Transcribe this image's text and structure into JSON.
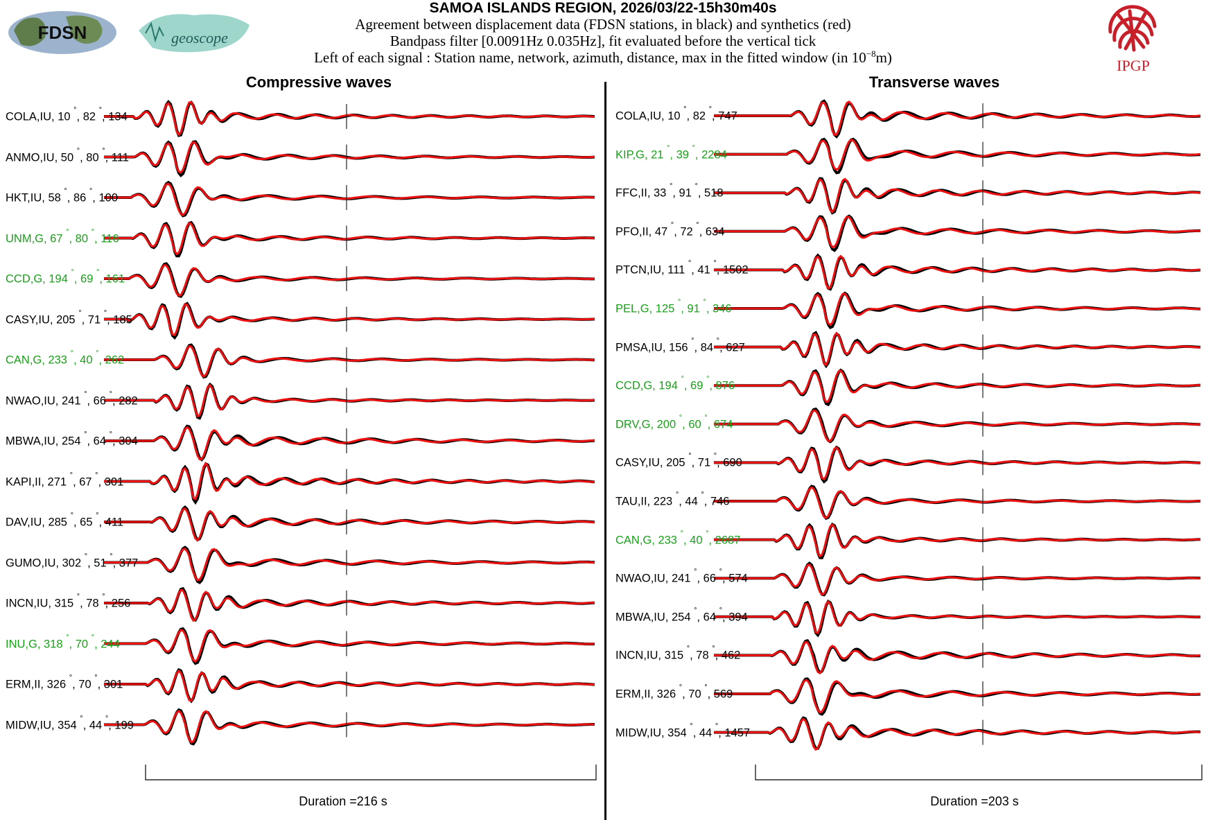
{
  "title": "SAMOA ISLANDS REGION, 2026/03/22-15h30m40s",
  "subtitle_1": "Agreement between displacement data (FDSN stations, in black) and synthetics (red)",
  "subtitle_2": "Bandpass filter [0.0091Hz 0.035Hz], fit evaluated before the vertical tick",
  "subtitle_3_prefix": "Left of each signal : Station name, network, azimuth, distance, max in the fitted window (in 10",
  "subtitle_3_exp": "−8",
  "subtitle_3_suffix": "m)",
  "logos": {
    "fdsn": "FDSN",
    "geoscope": "geoscope",
    "ipgp": "IPGP"
  },
  "colors": {
    "data": "#000000",
    "synthetic": "#ee1111",
    "green_label": "#1aa01a"
  },
  "degree_symbol": "°",
  "chart_data": [
    {
      "type": "line",
      "title": "Compressive waves",
      "duration_label": "Duration =216 s",
      "duration_s": 216,
      "series_legend": {
        "data": "black",
        "synthetics": "red"
      },
      "stations": [
        {
          "name": "COLA,IU",
          "azimuth": 10,
          "distance": 82,
          "max": 134,
          "green": false
        },
        {
          "name": "ANMO,IU",
          "azimuth": 50,
          "distance": 80,
          "max": 111,
          "green": false
        },
        {
          "name": "HKT,IU",
          "azimuth": 58,
          "distance": 86,
          "max": 100,
          "green": false
        },
        {
          "name": "UNM,G",
          "azimuth": 67,
          "distance": 80,
          "max": 116,
          "green": true
        },
        {
          "name": "CCD,G",
          "azimuth": 194,
          "distance": 69,
          "max": 161,
          "green": true
        },
        {
          "name": "CASY,IU",
          "azimuth": 205,
          "distance": 71,
          "max": 185,
          "green": false
        },
        {
          "name": "CAN,G",
          "azimuth": 233,
          "distance": 40,
          "max": 262,
          "green": true
        },
        {
          "name": "NWAO,IU",
          "azimuth": 241,
          "distance": 66,
          "max": 282,
          "green": false
        },
        {
          "name": "MBWA,IU",
          "azimuth": 254,
          "distance": 64,
          "max": 304,
          "green": false
        },
        {
          "name": "KAPI,II",
          "azimuth": 271,
          "distance": 67,
          "max": 301,
          "green": false
        },
        {
          "name": "DAV,IU",
          "azimuth": 285,
          "distance": 65,
          "max": 411,
          "green": false
        },
        {
          "name": "GUMO,IU",
          "azimuth": 302,
          "distance": 51,
          "max": 377,
          "green": false
        },
        {
          "name": "INCN,IU",
          "azimuth": 315,
          "distance": 78,
          "max": 256,
          "green": false
        },
        {
          "name": "INU,G",
          "azimuth": 318,
          "distance": 70,
          "max": 244,
          "green": true
        },
        {
          "name": "ERM,II",
          "azimuth": 326,
          "distance": 70,
          "max": 301,
          "green": false
        },
        {
          "name": "MIDW,IU",
          "azimuth": 354,
          "distance": 44,
          "max": 199,
          "green": false
        }
      ]
    },
    {
      "type": "line",
      "title": "Transverse waves",
      "duration_label": "Duration =203 s",
      "duration_s": 203,
      "series_legend": {
        "data": "black",
        "synthetics": "red"
      },
      "stations": [
        {
          "name": "COLA,IU",
          "azimuth": 10,
          "distance": 82,
          "max": 747,
          "green": false
        },
        {
          "name": "KIP,G",
          "azimuth": 21,
          "distance": 39,
          "max": 2284,
          "green": true
        },
        {
          "name": "FFC,II",
          "azimuth": 33,
          "distance": 91,
          "max": 518,
          "green": false
        },
        {
          "name": "PFO,II",
          "azimuth": 47,
          "distance": 72,
          "max": 634,
          "green": false
        },
        {
          "name": "PTCN,IU",
          "azimuth": 111,
          "distance": 41,
          "max": 1502,
          "green": false
        },
        {
          "name": "PEL,G",
          "azimuth": 125,
          "distance": 91,
          "max": 346,
          "green": true
        },
        {
          "name": "PMSA,IU",
          "azimuth": 156,
          "distance": 84,
          "max": 627,
          "green": false
        },
        {
          "name": "CCD,G",
          "azimuth": 194,
          "distance": 69,
          "max": 876,
          "green": true
        },
        {
          "name": "DRV,G",
          "azimuth": 200,
          "distance": 60,
          "max": 674,
          "green": true
        },
        {
          "name": "CASY,IU",
          "azimuth": 205,
          "distance": 71,
          "max": 690,
          "green": false
        },
        {
          "name": "TAU,II",
          "azimuth": 223,
          "distance": 44,
          "max": 746,
          "green": false
        },
        {
          "name": "CAN,G",
          "azimuth": 233,
          "distance": 40,
          "max": 2687,
          "green": true
        },
        {
          "name": "NWAO,IU",
          "azimuth": 241,
          "distance": 66,
          "max": 574,
          "green": false
        },
        {
          "name": "MBWA,IU",
          "azimuth": 254,
          "distance": 64,
          "max": 394,
          "green": false
        },
        {
          "name": "INCN,IU",
          "azimuth": 315,
          "distance": 78,
          "max": 462,
          "green": false
        },
        {
          "name": "ERM,II",
          "azimuth": 326,
          "distance": 70,
          "max": 569,
          "green": false
        },
        {
          "name": "MIDW,IU",
          "azimuth": 354,
          "distance": 44,
          "max": 1457,
          "green": false
        }
      ]
    }
  ]
}
